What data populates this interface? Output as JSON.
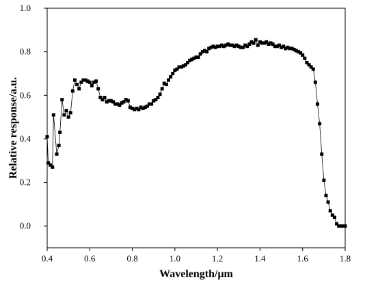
{
  "chart_data": {
    "type": "line",
    "xlabel": "Wavelength/μm",
    "ylabel": "Relative response/a.u.",
    "color": "#000000",
    "x": [
      0.4,
      0.405,
      0.415,
      0.425,
      0.43,
      0.445,
      0.455,
      0.46,
      0.47,
      0.48,
      0.49,
      0.5,
      0.51,
      0.52,
      0.53,
      0.54,
      0.55,
      0.56,
      0.57,
      0.58,
      0.59,
      0.6,
      0.61,
      0.62,
      0.63,
      0.64,
      0.65,
      0.66,
      0.67,
      0.68,
      0.69,
      0.7,
      0.71,
      0.72,
      0.73,
      0.74,
      0.75,
      0.76,
      0.77,
      0.78,
      0.79,
      0.8,
      0.81,
      0.82,
      0.83,
      0.84,
      0.85,
      0.86,
      0.87,
      0.88,
      0.89,
      0.9,
      0.91,
      0.92,
      0.93,
      0.94,
      0.95,
      0.96,
      0.97,
      0.98,
      0.99,
      1.0,
      1.01,
      1.02,
      1.03,
      1.04,
      1.05,
      1.06,
      1.07,
      1.08,
      1.09,
      1.1,
      1.11,
      1.12,
      1.13,
      1.14,
      1.15,
      1.16,
      1.17,
      1.18,
      1.19,
      1.2,
      1.21,
      1.22,
      1.23,
      1.24,
      1.25,
      1.26,
      1.27,
      1.28,
      1.29,
      1.3,
      1.31,
      1.32,
      1.33,
      1.34,
      1.35,
      1.36,
      1.37,
      1.38,
      1.39,
      1.4,
      1.41,
      1.42,
      1.43,
      1.44,
      1.45,
      1.46,
      1.47,
      1.48,
      1.49,
      1.5,
      1.51,
      1.52,
      1.53,
      1.54,
      1.55,
      1.56,
      1.57,
      1.58,
      1.59,
      1.6,
      1.61,
      1.62,
      1.63,
      1.64,
      1.65,
      1.66,
      1.67,
      1.68,
      1.69,
      1.7,
      1.71,
      1.72,
      1.73,
      1.74,
      1.75,
      1.76,
      1.77,
      1.78,
      1.79,
      1.8
    ],
    "values": [
      0.41,
      0.29,
      0.28,
      0.27,
      0.51,
      0.33,
      0.37,
      0.43,
      0.58,
      0.51,
      0.53,
      0.5,
      0.52,
      0.62,
      0.67,
      0.65,
      0.63,
      0.66,
      0.67,
      0.67,
      0.665,
      0.66,
      0.645,
      0.66,
      0.665,
      0.63,
      0.59,
      0.58,
      0.59,
      0.57,
      0.575,
      0.575,
      0.57,
      0.56,
      0.56,
      0.555,
      0.565,
      0.57,
      0.58,
      0.575,
      0.545,
      0.54,
      0.535,
      0.54,
      0.535,
      0.545,
      0.54,
      0.545,
      0.55,
      0.56,
      0.56,
      0.575,
      0.58,
      0.59,
      0.605,
      0.63,
      0.655,
      0.65,
      0.67,
      0.685,
      0.7,
      0.715,
      0.72,
      0.73,
      0.73,
      0.735,
      0.74,
      0.75,
      0.76,
      0.765,
      0.77,
      0.775,
      0.775,
      0.79,
      0.8,
      0.805,
      0.8,
      0.815,
      0.82,
      0.825,
      0.82,
      0.825,
      0.825,
      0.83,
      0.825,
      0.83,
      0.835,
      0.83,
      0.83,
      0.825,
      0.83,
      0.825,
      0.82,
      0.82,
      0.83,
      0.825,
      0.835,
      0.845,
      0.84,
      0.855,
      0.83,
      0.845,
      0.84,
      0.84,
      0.845,
      0.835,
      0.84,
      0.835,
      0.825,
      0.825,
      0.83,
      0.82,
      0.825,
      0.815,
      0.82,
      0.815,
      0.815,
      0.81,
      0.805,
      0.8,
      0.795,
      0.785,
      0.77,
      0.75,
      0.74,
      0.73,
      0.72,
      0.66,
      0.56,
      0.47,
      0.33,
      0.21,
      0.14,
      0.11,
      0.07,
      0.05,
      0.04,
      0.01,
      0.0,
      0.0,
      0.0,
      0.0
    ],
    "xlim": [
      0.4,
      1.8
    ],
    "ylim": [
      -0.1,
      1.0
    ],
    "xticks": [
      0.4,
      0.6,
      0.8,
      {
        "value": 1.0,
        "label": "1.0"
      },
      1.2,
      1.4,
      1.6,
      1.8
    ],
    "yticks": [
      {
        "value": 0.0,
        "label": "0.0"
      },
      0.2,
      0.4,
      0.6,
      0.8,
      {
        "value": 1.0,
        "label": "1.0"
      }
    ]
  }
}
